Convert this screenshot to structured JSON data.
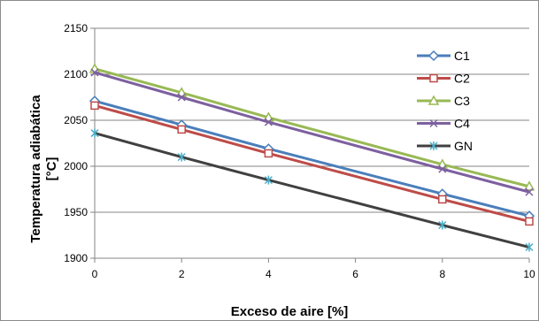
{
  "chart_data": {
    "type": "line",
    "title": "",
    "xlabel": "Exceso de aire [%]",
    "ylabel_line1": "Temperatura adiabática",
    "ylabel_line2": "[°C]",
    "xlim": [
      0,
      10
    ],
    "ylim": [
      1900,
      2150
    ],
    "xticks": [
      0,
      2,
      4,
      6,
      8,
      10
    ],
    "yticks": [
      1900,
      1950,
      2000,
      2050,
      2100,
      2150
    ],
    "grid": "horizontal",
    "legend_position": "right",
    "x": [
      0,
      2,
      4,
      8,
      10
    ],
    "series": [
      {
        "name": "C1",
        "color": "#4a7ebb",
        "marker": "diamond",
        "values": [
          2071,
          2045,
          2019,
          1970,
          1946
        ]
      },
      {
        "name": "C2",
        "color": "#be4b48",
        "marker": "square",
        "values": [
          2066,
          2040,
          2014,
          1964,
          1940
        ]
      },
      {
        "name": "C3",
        "color": "#98b954",
        "marker": "triangle",
        "values": [
          2106,
          2080,
          2053,
          2002,
          1978
        ]
      },
      {
        "name": "C4",
        "color": "#7d60a0",
        "marker": "x",
        "values": [
          2102,
          2075,
          2048,
          1997,
          1972
        ]
      },
      {
        "name": "GN",
        "color": "#404040",
        "marker_color": "#4bacc6",
        "marker": "star",
        "values": [
          2036,
          2010,
          1985,
          1936,
          1912
        ]
      }
    ]
  }
}
